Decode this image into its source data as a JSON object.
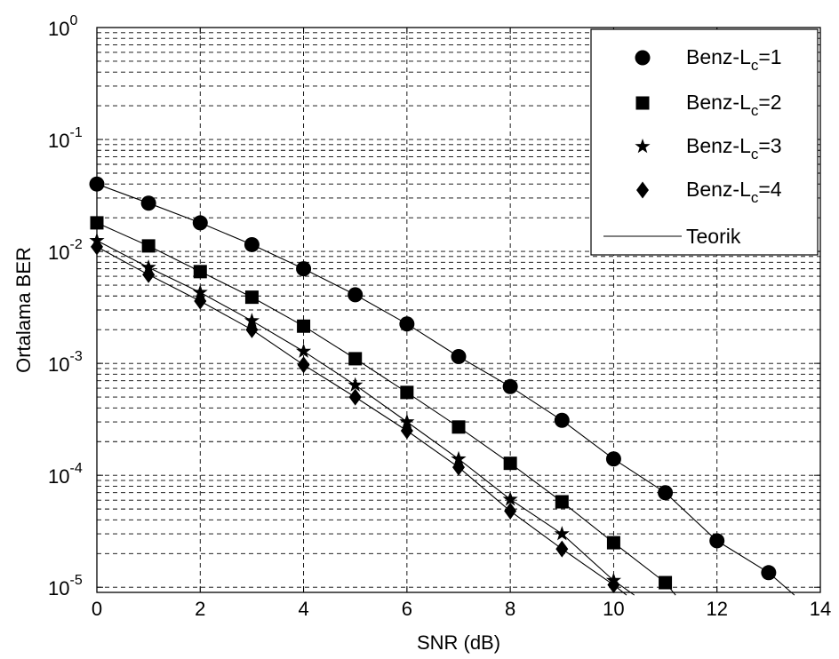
{
  "chart_data": {
    "type": "scatter",
    "xlabel": "SNR (dB)",
    "ylabel": "Ortalama BER",
    "xlim": [
      0,
      14
    ],
    "ylim": [
      9e-06,
      1
    ],
    "yscale": "log",
    "grid": true,
    "legend_position": "top-right",
    "x_ticks": [
      "0",
      "2",
      "4",
      "6",
      "8",
      "10",
      "12",
      "14"
    ],
    "y_ticks": [
      {
        "base": "10",
        "exp": "0",
        "value": 1
      },
      {
        "base": "10",
        "exp": "-1",
        "value": 0.1
      },
      {
        "base": "10",
        "exp": "-2",
        "value": 0.01
      },
      {
        "base": "10",
        "exp": "-3",
        "value": 0.001
      },
      {
        "base": "10",
        "exp": "-4",
        "value": 0.0001
      },
      {
        "base": "10",
        "exp": "-5",
        "value": 1e-05
      }
    ],
    "series": [
      {
        "name": "Benz-L",
        "name_sub": "c",
        "name_suffix": "=1",
        "marker": "circle",
        "x": [
          0,
          1,
          2,
          3,
          4,
          5,
          6,
          7,
          8,
          9,
          10,
          11,
          12,
          13
        ],
        "values": [
          0.04,
          0.027,
          0.018,
          0.0115,
          0.007,
          0.0041,
          0.00225,
          0.00115,
          0.00062,
          0.00031,
          0.00014,
          7e-05,
          2.6e-05,
          1.35e-05
        ]
      },
      {
        "name": "Benz-L",
        "name_sub": "c",
        "name_suffix": "=2",
        "marker": "square",
        "x": [
          0,
          1,
          2,
          3,
          4,
          5,
          6,
          7,
          8,
          9,
          10,
          11
        ],
        "values": [
          0.018,
          0.0112,
          0.0066,
          0.0039,
          0.00215,
          0.0011,
          0.00055,
          0.00027,
          0.000128,
          5.8e-05,
          2.5e-05,
          1.1e-05
        ]
      },
      {
        "name": "Benz-L",
        "name_sub": "c",
        "name_suffix": "=3",
        "marker": "star",
        "x": [
          0,
          1,
          2,
          3,
          4,
          5,
          6,
          7,
          8,
          9,
          10
        ],
        "values": [
          0.0125,
          0.0072,
          0.0043,
          0.0024,
          0.00128,
          0.00064,
          0.0003,
          0.00014,
          6.1e-05,
          3e-05,
          1.15e-05
        ]
      },
      {
        "name": "Benz-L",
        "name_sub": "c",
        "name_suffix": "=4",
        "marker": "diamond",
        "x": [
          0,
          1,
          2,
          3,
          4,
          5,
          6,
          7,
          8,
          9,
          10
        ],
        "values": [
          0.011,
          0.0062,
          0.0036,
          0.002,
          0.00097,
          0.0005,
          0.00025,
          0.000118,
          4.8e-05,
          2.2e-05,
          1.05e-05
        ]
      },
      {
        "name": "Teorik",
        "marker": "line",
        "style": "solid",
        "curves": [
          {
            "x": [
              0,
              1,
              2,
              3,
              4,
              5,
              6,
              7,
              8,
              9,
              10,
              11,
              12,
              13,
              13.5
            ],
            "values": [
              0.04,
              0.027,
              0.018,
              0.0115,
              0.007,
              0.0041,
              0.00225,
              0.00115,
              0.00062,
              0.00031,
              0.00014,
              7e-05,
              2.6e-05,
              1.35e-05,
              8.5e-06
            ]
          },
          {
            "x": [
              0,
              1,
              2,
              3,
              4,
              5,
              6,
              7,
              8,
              9,
              10,
              11,
              11.2
            ],
            "values": [
              0.018,
              0.0112,
              0.0066,
              0.0039,
              0.00215,
              0.0011,
              0.00055,
              0.00027,
              0.000128,
              5.8e-05,
              2.5e-05,
              1.1e-05,
              8.5e-06
            ]
          },
          {
            "x": [
              0,
              1,
              2,
              3,
              4,
              5,
              6,
              7,
              8,
              9,
              10,
              10.4
            ],
            "values": [
              0.0125,
              0.0072,
              0.0043,
              0.0024,
              0.00128,
              0.00064,
              0.0003,
              0.00014,
              6.1e-05,
              3e-05,
              1.15e-05,
              8.5e-06
            ]
          },
          {
            "x": [
              0,
              1,
              2,
              3,
              4,
              5,
              6,
              7,
              8,
              9,
              10,
              10.25
            ],
            "values": [
              0.011,
              0.0062,
              0.0036,
              0.002,
              0.00097,
              0.0005,
              0.00025,
              0.000118,
              4.8e-05,
              2.2e-05,
              1.05e-05,
              8.5e-06
            ]
          }
        ]
      }
    ]
  }
}
